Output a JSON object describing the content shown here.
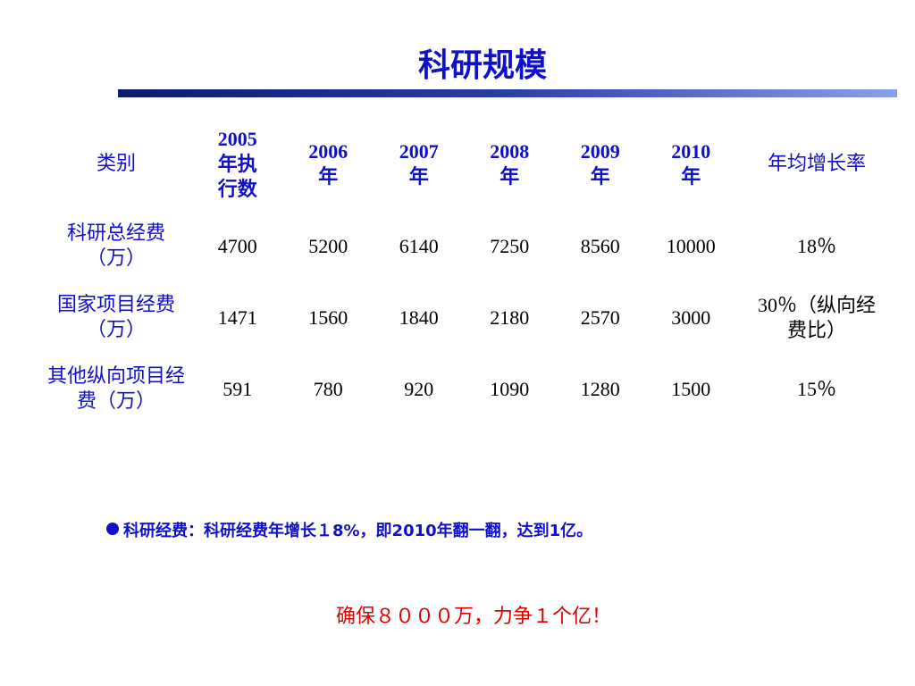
{
  "title": "科研规模",
  "table": {
    "header": [
      "类别",
      "2005年执行数",
      "2006年",
      "2007年",
      "2008年",
      "2009年",
      "2010年",
      "年均增长率"
    ],
    "rows": [
      [
        "科研总经费（万）",
        "4700",
        "5200",
        "6140",
        "7250",
        "8560",
        "10000",
        "18％"
      ],
      [
        "国家项目经费（万）",
        "1471",
        "1560",
        "1840",
        "2180",
        "2570",
        "3000",
        "30％（纵向经费比）"
      ],
      [
        "其他纵向项目经费（万）",
        "591",
        "780",
        "920",
        "1090",
        "1280",
        "1500",
        "15％"
      ]
    ]
  },
  "notes": [
    "科研经费：科研经费年增长１8%，即2010年翻一翻，达到1亿。",
    "确保８０００万，力争１个亿！"
  ]
}
